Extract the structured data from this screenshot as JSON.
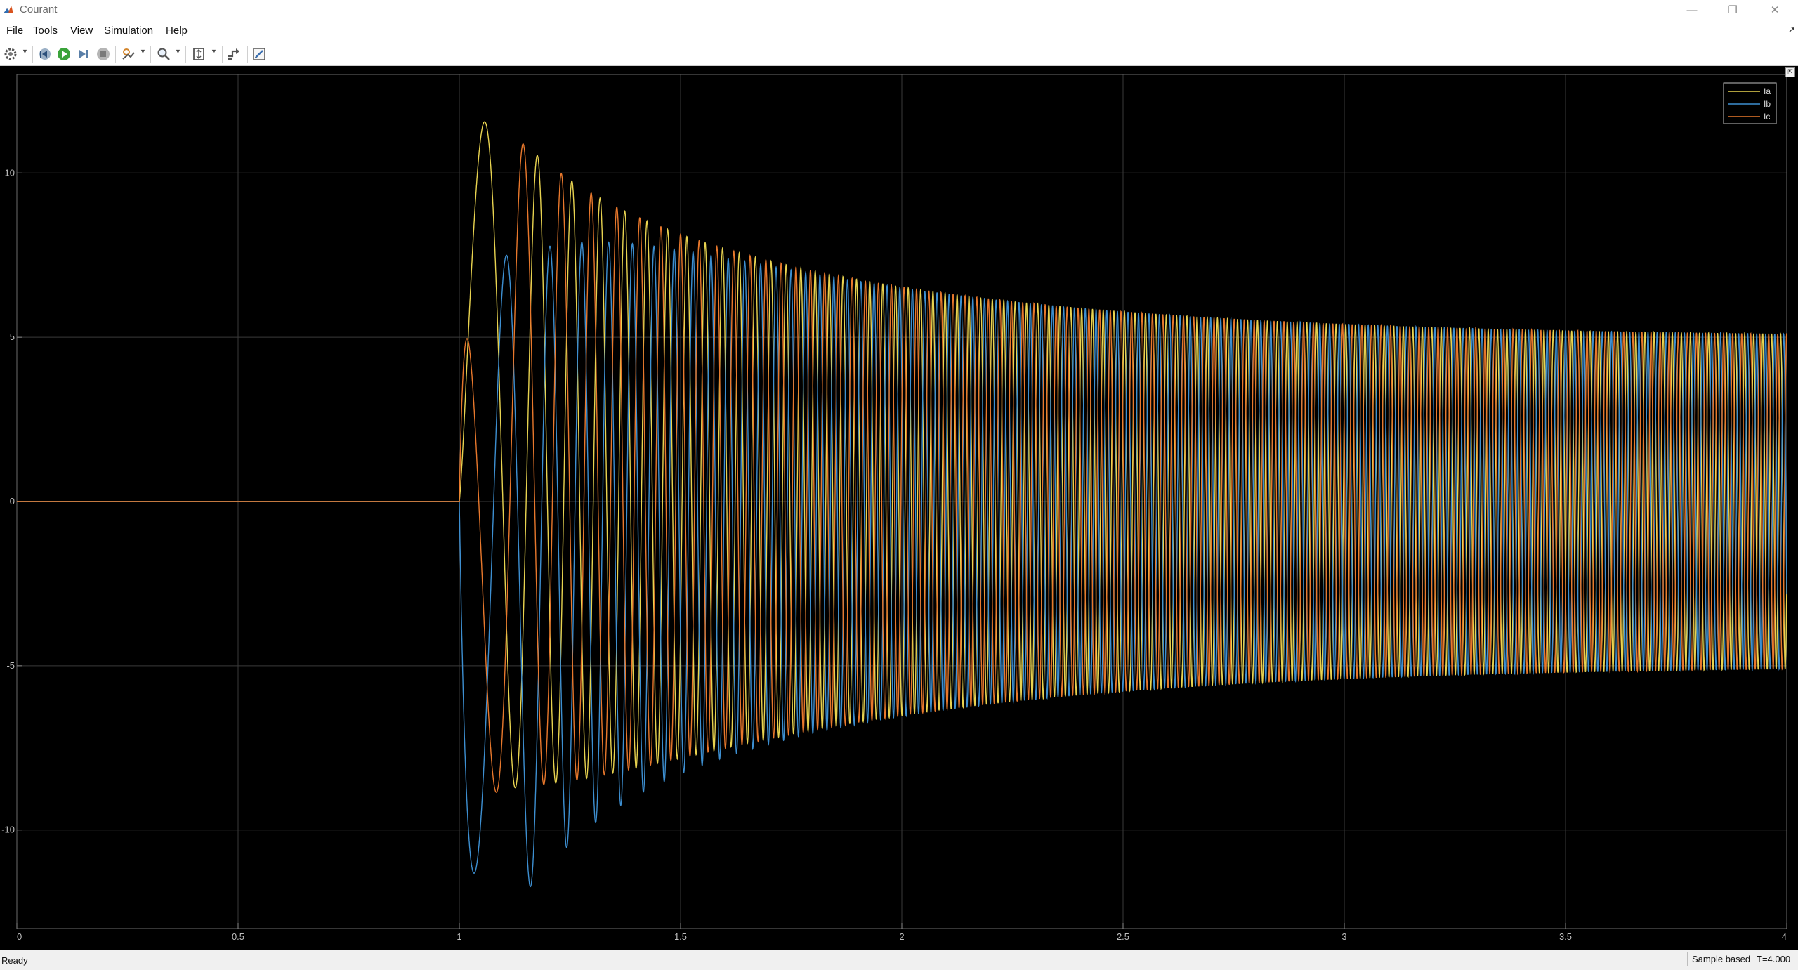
{
  "window": {
    "title": "Courant",
    "minimize_glyph": "—",
    "restore_glyph": "❐",
    "close_glyph": "✕"
  },
  "menu": {
    "items": [
      "File",
      "Tools",
      "View",
      "Simulation",
      "Help"
    ]
  },
  "toolbar": {
    "icons": [
      "settings-icon",
      "step-back-icon",
      "run-icon",
      "step-forward-icon",
      "stop-icon",
      "highlight-icon",
      "zoom-icon",
      "fit-axes-icon",
      "signal-icon",
      "edit-icon"
    ]
  },
  "status": {
    "text": "Ready",
    "mode": "Sample based",
    "time": "T=4.000"
  },
  "colors": {
    "background": "#000000",
    "grid": "#3a3a3a",
    "axis_text": "#bfbfbf",
    "Ia": "#e8d350",
    "Ib": "#3d8fd1",
    "Ic": "#e8782c"
  },
  "chart_data": {
    "type": "line",
    "title": "",
    "xlabel": "",
    "ylabel": "",
    "xlim": [
      0,
      4
    ],
    "ylim": [
      -13,
      13
    ],
    "xticks": [
      0,
      0.5,
      1,
      1.5,
      2,
      2.5,
      3,
      3.5,
      4
    ],
    "xtick_labels": [
      "0",
      "0.5",
      "1",
      "1.5",
      "2",
      "2.5",
      "3",
      "3.5",
      "4"
    ],
    "yticks": [
      10,
      5,
      0,
      -5,
      -10
    ],
    "ytick_labels": [
      "10",
      "5",
      "0",
      "-5",
      "-10"
    ],
    "grid": true,
    "legend_position": "top-right",
    "legend": [
      "Ia",
      "Ib",
      "Ic"
    ],
    "series": [
      {
        "name": "Ia",
        "color": "#e8d350"
      },
      {
        "name": "Ib",
        "color": "#3d8fd1"
      },
      {
        "name": "Ic",
        "color": "#e8782c"
      }
    ],
    "signal": {
      "step_time": 1.0,
      "steady_amplitude": 5,
      "frequency_start_hz": 2.5,
      "frequency_end_hz": 51,
      "envelope_peaks": [
        [
          1.18,
          10.5
        ],
        [
          1.05,
          -10.3
        ],
        [
          1.27,
          -10.0
        ],
        [
          1.35,
          9.7
        ],
        [
          1.45,
          9.2
        ],
        [
          1.6,
          8.5
        ],
        [
          2.0,
          7.0
        ],
        [
          2.5,
          6.0
        ],
        [
          3.0,
          5.3
        ],
        [
          3.5,
          5.05
        ],
        [
          4.0,
          5.0
        ]
      ],
      "initial_value": 0
    }
  }
}
